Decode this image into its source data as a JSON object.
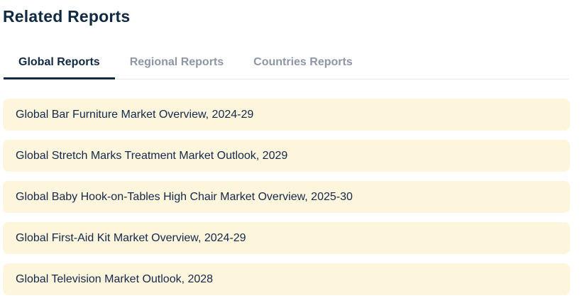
{
  "page": {
    "title": "Related Reports"
  },
  "tabs": [
    {
      "label": "Global Reports",
      "active": true
    },
    {
      "label": "Regional Reports",
      "active": false
    },
    {
      "label": "Countries Reports",
      "active": false
    }
  ],
  "reports": [
    "Global Bar Furniture Market Overview, 2024-29",
    "Global Stretch Marks Treatment Market Outlook, 2029",
    "Global Baby Hook-on-Tables High Chair Market Overview, 2025-30",
    "Global First-Aid Kit Market Overview, 2024-29",
    "Global Television Market Outlook, 2028"
  ],
  "colors": {
    "accent": "#102a43",
    "inactive": "#8c96a5",
    "divider": "#e5e7eb",
    "rowbg": "#fdf5dc",
    "rowtext": "#14284b"
  }
}
